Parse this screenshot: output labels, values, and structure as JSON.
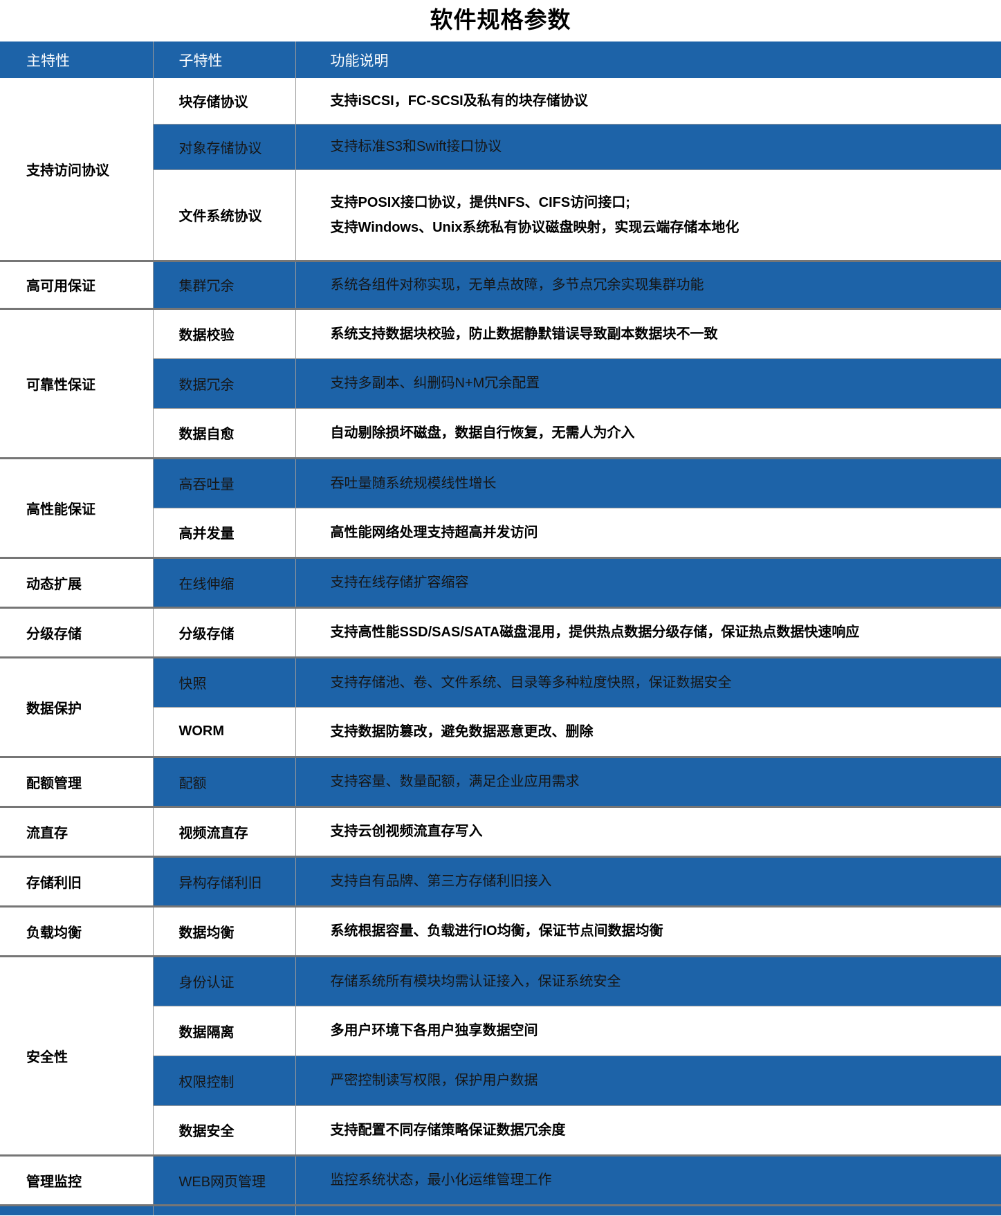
{
  "title": "软件规格参数",
  "colors": {
    "header_bg": "#1d63a8",
    "shaded_row_bg": "#1d63a8",
    "header_text": "#ffffff",
    "body_text": "#000000",
    "group_divider": "#767676",
    "cell_divider": "#9a9a9a"
  },
  "table": {
    "headers": [
      "主特性",
      "子特性",
      "功能说明"
    ],
    "groups": [
      {
        "feature": "支持访问协议",
        "rows": [
          {
            "sub": "块存储协议",
            "desc": "支持iSCSI，FC-SCSI及私有的块存储协议"
          },
          {
            "sub": "对象存储协议",
            "desc": "支持标准S3和Swift接口协议"
          },
          {
            "sub": "文件系统协议",
            "desc": "支持POSIX接口协议，提供NFS、CIFS访问接口;\n支持Windows、Unix系统私有协议磁盘映射，实现云端存储本地化"
          }
        ]
      },
      {
        "feature": "高可用保证",
        "rows": [
          {
            "sub": "集群冗余",
            "desc": "系统各组件对称实现，无单点故障，多节点冗余实现集群功能"
          }
        ]
      },
      {
        "feature": "可靠性保证",
        "rows": [
          {
            "sub": "数据校验",
            "desc": "系统支持数据块校验，防止数据静默错误导致副本数据块不一致"
          },
          {
            "sub": "数据冗余",
            "desc": "支持多副本、纠删码N+M冗余配置"
          },
          {
            "sub": "数据自愈",
            "desc": "自动剔除损坏磁盘，数据自行恢复，无需人为介入"
          }
        ]
      },
      {
        "feature": "高性能保证",
        "rows": [
          {
            "sub": "高吞吐量",
            "desc": "吞吐量随系统规模线性增长"
          },
          {
            "sub": "高并发量",
            "desc": "高性能网络处理支持超高并发访问"
          }
        ]
      },
      {
        "feature": "动态扩展",
        "rows": [
          {
            "sub": "在线伸缩",
            "desc": "支持在线存储扩容缩容"
          }
        ]
      },
      {
        "feature": "分级存储",
        "rows": [
          {
            "sub": "分级存储",
            "desc": "支持高性能SSD/SAS/SATA磁盘混用，提供热点数据分级存储，保证热点数据快速响应"
          }
        ]
      },
      {
        "feature": "数据保护",
        "rows": [
          {
            "sub": "快照",
            "desc": "支持存储池、卷、文件系统、目录等多种粒度快照，保证数据安全"
          },
          {
            "sub": "WORM",
            "desc": "支持数据防篡改，避免数据恶意更改、删除"
          }
        ]
      },
      {
        "feature": "配额管理",
        "rows": [
          {
            "sub": "配额",
            "desc": "支持容量、数量配额，满足企业应用需求"
          }
        ]
      },
      {
        "feature": "流直存",
        "rows": [
          {
            "sub": "视频流直存",
            "desc": "支持云创视频流直存写入"
          }
        ]
      },
      {
        "feature": "存储利旧",
        "rows": [
          {
            "sub": "异构存储利旧",
            "desc": "支持自有品牌、第三方存储利旧接入"
          }
        ]
      },
      {
        "feature": "负载均衡",
        "rows": [
          {
            "sub": "数据均衡",
            "desc": "系统根据容量、负载进行IO均衡，保证节点间数据均衡"
          }
        ]
      },
      {
        "feature": "安全性",
        "rows": [
          {
            "sub": "身份认证",
            "desc": "存储系统所有模块均需认证接入，保证系统安全"
          },
          {
            "sub": "数据隔离",
            "desc": "多用户环境下各用户独享数据空间"
          },
          {
            "sub": "权限控制",
            "desc": "严密控制读写权限，保护用户数据"
          },
          {
            "sub": "数据安全",
            "desc": "支持配置不同存储策略保证数据冗余度"
          }
        ]
      },
      {
        "feature": "管理监控",
        "rows": [
          {
            "sub": "WEB网页管理",
            "desc": "监控系统状态，最小化运维管理工作"
          }
        ]
      }
    ]
  }
}
